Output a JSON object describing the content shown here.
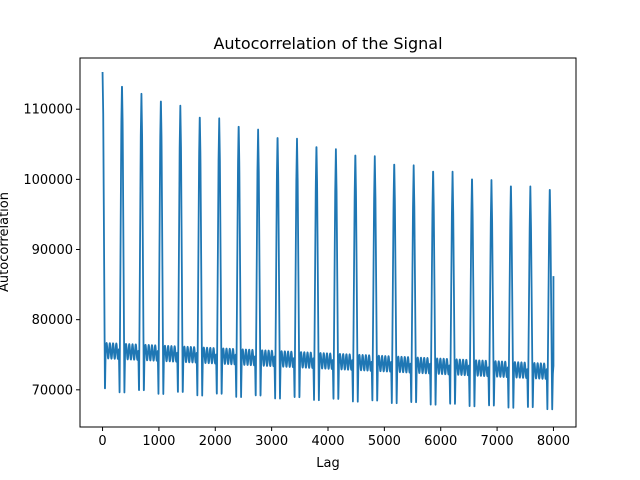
{
  "chart_data": {
    "type": "line",
    "title": "Autocorrelation of the Signal",
    "xlabel": "Lag",
    "ylabel": "Autocorrelation",
    "xlim": [
      -400,
      8400
    ],
    "ylim": [
      64700,
      117300
    ],
    "x_ticks": [
      0,
      1000,
      2000,
      3000,
      4000,
      5000,
      6000,
      7000,
      8000
    ],
    "y_ticks": [
      70000,
      80000,
      90000,
      100000,
      110000
    ],
    "x_tick_labels": [
      "0",
      "1000",
      "2000",
      "3000",
      "4000",
      "5000",
      "6000",
      "7000",
      "8000"
    ],
    "y_tick_labels": [
      "70000",
      "80000",
      "90000",
      "100000",
      "110000"
    ],
    "grid": false,
    "legend": "none",
    "line_color": "#1f77b4",
    "period": 345,
    "lag_max": 8000,
    "peaks": [
      [
        0,
        115300
      ],
      [
        345,
        113700
      ],
      [
        690,
        112200
      ],
      [
        1035,
        111600
      ],
      [
        1380,
        110500
      ],
      [
        1725,
        109300
      ],
      [
        2070,
        108700
      ],
      [
        2415,
        108000
      ],
      [
        2760,
        107100
      ],
      [
        3105,
        106400
      ],
      [
        3450,
        105800
      ],
      [
        3795,
        105100
      ],
      [
        4140,
        104300
      ],
      [
        4485,
        103900
      ],
      [
        4830,
        103300
      ],
      [
        5175,
        102600
      ],
      [
        5520,
        102000
      ],
      [
        5865,
        101600
      ],
      [
        6210,
        101100
      ],
      [
        6555,
        100500
      ],
      [
        6900,
        99900
      ],
      [
        7245,
        99500
      ],
      [
        7590,
        99000
      ]
    ],
    "troughs_start": 69300,
    "troughs_end": 66800,
    "mid_level_start": 75600,
    "mid_level_end": 72600,
    "end_value": 86200
  }
}
